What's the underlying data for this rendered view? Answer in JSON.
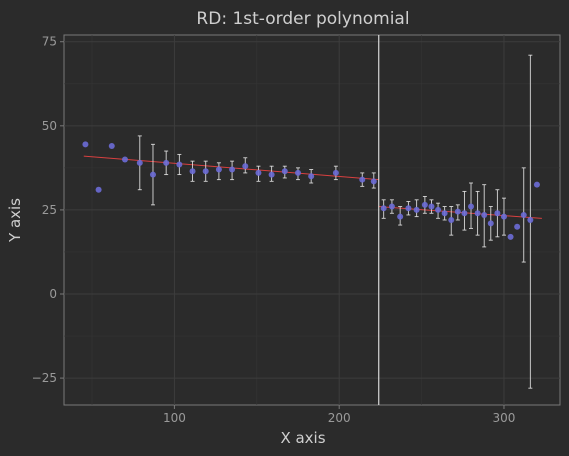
{
  "chart_data": {
    "type": "scatter",
    "title": "RD: 1st-order polynomial",
    "xlabel": "X axis",
    "ylabel": "Y axis",
    "xlim": [
      33,
      334
    ],
    "ylim": [
      -33,
      77
    ],
    "xticks": [
      100,
      200,
      300
    ],
    "yticks": [
      -25,
      0,
      25,
      50,
      75
    ],
    "xtick_labels": [
      "100",
      "200",
      "300"
    ],
    "ytick_labels": [
      "−25",
      "0",
      "25",
      "50",
      "75"
    ],
    "cutoff": 224,
    "grid": true,
    "colors": {
      "points": "#6b6bd6",
      "fit_line": "#d94040",
      "error_bars": "#d9d9d9",
      "cutoff_line": "#d9d9d9"
    },
    "points": [
      {
        "x": 46,
        "y": 44.5
      },
      {
        "x": 54,
        "y": 31
      },
      {
        "x": 62,
        "y": 44
      },
      {
        "x": 70,
        "y": 40
      },
      {
        "x": 79,
        "y": 39,
        "lo": 31,
        "hi": 47
      },
      {
        "x": 87,
        "y": 35.5,
        "lo": 26.5,
        "hi": 44.5
      },
      {
        "x": 95,
        "y": 39,
        "lo": 35.5,
        "hi": 42.5
      },
      {
        "x": 103,
        "y": 38.5,
        "lo": 35.5,
        "hi": 41.5
      },
      {
        "x": 111,
        "y": 36.5,
        "lo": 33.5,
        "hi": 39.5
      },
      {
        "x": 119,
        "y": 36.5,
        "lo": 33.5,
        "hi": 39.5
      },
      {
        "x": 127,
        "y": 37,
        "lo": 34,
        "hi": 39
      },
      {
        "x": 135,
        "y": 37,
        "lo": 34,
        "hi": 39.5
      },
      {
        "x": 143,
        "y": 38,
        "lo": 36,
        "hi": 40.5
      },
      {
        "x": 151,
        "y": 36,
        "lo": 33.5,
        "hi": 38
      },
      {
        "x": 159,
        "y": 35.5,
        "lo": 33.5,
        "hi": 38
      },
      {
        "x": 167,
        "y": 36.5,
        "lo": 34.5,
        "hi": 38
      },
      {
        "x": 175,
        "y": 36,
        "lo": 34,
        "hi": 37.5
      },
      {
        "x": 183,
        "y": 35,
        "lo": 33,
        "hi": 37
      },
      {
        "x": 198,
        "y": 36,
        "lo": 34,
        "hi": 38
      },
      {
        "x": 214,
        "y": 34,
        "lo": 32,
        "hi": 36
      },
      {
        "x": 221,
        "y": 33.5,
        "lo": 31.5,
        "hi": 36
      },
      {
        "x": 227,
        "y": 25.5,
        "lo": 22.5,
        "hi": 28
      },
      {
        "x": 232,
        "y": 26,
        "lo": 24,
        "hi": 28
      },
      {
        "x": 237,
        "y": 23,
        "lo": 20.5,
        "hi": 26
      },
      {
        "x": 242,
        "y": 25.5,
        "lo": 23.5,
        "hi": 27.5
      },
      {
        "x": 247,
        "y": 25,
        "lo": 23,
        "hi": 28
      },
      {
        "x": 252,
        "y": 26.5,
        "lo": 24,
        "hi": 29
      },
      {
        "x": 256,
        "y": 26,
        "lo": 24,
        "hi": 28
      },
      {
        "x": 260,
        "y": 25,
        "lo": 22.5,
        "hi": 27
      },
      {
        "x": 264,
        "y": 24,
        "lo": 22,
        "hi": 26
      },
      {
        "x": 268,
        "y": 22,
        "lo": 17.5,
        "hi": 26
      },
      {
        "x": 272,
        "y": 24.5,
        "lo": 22,
        "hi": 26.5
      },
      {
        "x": 276,
        "y": 24,
        "lo": 19,
        "hi": 30.5
      },
      {
        "x": 280,
        "y": 26,
        "lo": 19.5,
        "hi": 33
      },
      {
        "x": 284,
        "y": 24,
        "lo": 17.5,
        "hi": 30.5
      },
      {
        "x": 288,
        "y": 23.5,
        "lo": 14,
        "hi": 32.5
      },
      {
        "x": 292,
        "y": 21,
        "lo": 16,
        "hi": 26
      },
      {
        "x": 296,
        "y": 24,
        "lo": 17,
        "hi": 31
      },
      {
        "x": 300,
        "y": 23,
        "lo": 17.5,
        "hi": 28.5
      },
      {
        "x": 304,
        "y": 17,
        "lo": 17,
        "hi": 17
      },
      {
        "x": 308,
        "y": 20,
        "lo": 20,
        "hi": 20
      },
      {
        "x": 312,
        "y": 23.5,
        "lo": 9.5,
        "hi": 37.5
      },
      {
        "x": 316,
        "y": 22,
        "lo": -28,
        "hi": 71
      },
      {
        "x": 320,
        "y": 32.5
      }
    ],
    "fit_lines": [
      {
        "x": [
          45,
          224
        ],
        "y": [
          41,
          34
        ]
      },
      {
        "x": [
          224,
          323
        ],
        "y": [
          26,
          22.5
        ]
      }
    ]
  }
}
